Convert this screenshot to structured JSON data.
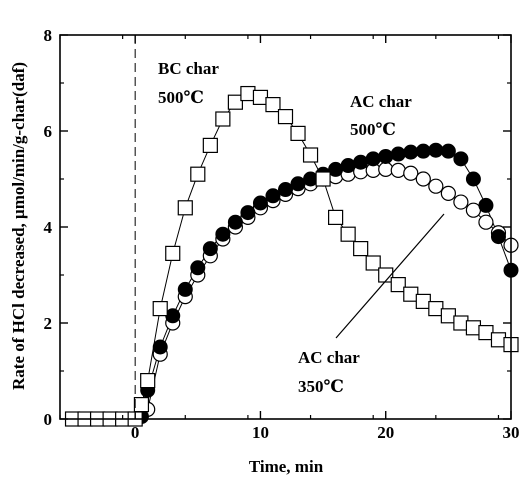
{
  "chart_data": {
    "type": "scatter",
    "xlabel": "Time, min",
    "ylabel": "Rate of HCl decreased, μmol/min/g-char(daf)",
    "xlim": [
      -6,
      30
    ],
    "ylim": [
      0,
      8
    ],
    "xticks": [
      0,
      10,
      20,
      30
    ],
    "yticks": [
      0,
      2,
      4,
      6,
      8
    ],
    "grid": false,
    "reference_line": {
      "x": 0,
      "style": "dashed"
    },
    "series": [
      {
        "marker": "open-square",
        "x": [
          -5,
          -4,
          -3,
          -2,
          -1,
          0,
          0.5,
          1,
          2,
          3,
          4,
          5,
          6,
          7,
          8,
          9,
          10,
          11,
          12,
          13,
          14,
          15,
          16,
          17,
          18,
          19,
          20,
          21,
          22,
          23,
          24,
          25,
          26,
          27,
          28,
          29,
          30
        ],
        "y": [
          0,
          0,
          0,
          0,
          0,
          0,
          0.3,
          0.8,
          2.3,
          3.45,
          4.4,
          5.1,
          5.7,
          6.25,
          6.6,
          6.78,
          6.7,
          6.55,
          6.3,
          5.95,
          5.5,
          5.0,
          4.2,
          3.85,
          3.55,
          3.25,
          3.0,
          2.8,
          2.6,
          2.45,
          2.3,
          2.15,
          2.0,
          1.9,
          1.8,
          1.65,
          1.55
        ]
      },
      {
        "marker": "filled-circle",
        "x": [
          -5,
          -4,
          -3,
          -2,
          -1,
          0,
          0.5,
          1,
          2,
          3,
          4,
          5,
          6,
          7,
          8,
          9,
          10,
          11,
          12,
          13,
          14,
          15,
          16,
          17,
          18,
          19,
          20,
          21,
          22,
          23,
          24,
          25,
          26,
          27,
          28,
          29,
          30
        ],
        "y": [
          0,
          0,
          0,
          0,
          0,
          0,
          0.05,
          0.6,
          1.5,
          2.15,
          2.7,
          3.15,
          3.55,
          3.85,
          4.1,
          4.3,
          4.5,
          4.65,
          4.78,
          4.9,
          5.0,
          5.1,
          5.2,
          5.28,
          5.35,
          5.42,
          5.47,
          5.52,
          5.56,
          5.58,
          5.6,
          5.58,
          5.42,
          5.0,
          4.45,
          3.8,
          3.1
        ]
      },
      {
        "marker": "open-circle",
        "x": [
          1,
          2,
          3,
          4,
          5,
          6,
          7,
          8,
          9,
          10,
          11,
          12,
          13,
          14,
          15,
          16,
          17,
          18,
          19,
          20,
          21,
          22,
          23,
          24,
          25,
          26,
          27,
          28,
          29,
          30
        ],
        "y": [
          0.2,
          1.35,
          2.0,
          2.55,
          3.0,
          3.4,
          3.75,
          4.0,
          4.2,
          4.4,
          4.55,
          4.68,
          4.8,
          4.9,
          5.0,
          5.05,
          5.1,
          5.15,
          5.18,
          5.2,
          5.18,
          5.12,
          5.0,
          4.85,
          4.7,
          4.52,
          4.35,
          4.1,
          3.88,
          3.62
        ]
      }
    ],
    "annotations": [
      {
        "line1": "BC char",
        "line2": "500℃"
      },
      {
        "line1": "AC char",
        "line2": "500℃"
      },
      {
        "line1": "AC char",
        "line2": "350℃"
      }
    ]
  }
}
